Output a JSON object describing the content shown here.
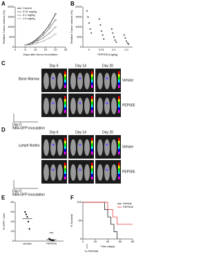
{
  "chart_data": [
    {
      "type": "line",
      "label": "A",
      "ylabel": "Relative Tumor volume (%)",
      "xlabel": "Days after tumor inoculation",
      "x": [
        5,
        8,
        11,
        14,
        17,
        20
      ],
      "xlim": [
        0,
        25
      ],
      "xticks": [
        0,
        5,
        10,
        15,
        20,
        25
      ],
      "ylim": [
        0,
        2000
      ],
      "yticks": [
        0,
        500,
        1000,
        1500,
        2000
      ],
      "legend": "upper-left",
      "series": [
        {
          "name": "Control",
          "color": "#000000",
          "values": [
            100,
            200,
            420,
            720,
            1100,
            1650
          ]
        },
        {
          "name": "0.01 mg/kg",
          "color": "#555555",
          "values": [
            100,
            180,
            360,
            600,
            950,
            1350
          ]
        },
        {
          "name": "0.1 mg/kg",
          "color": "#777777",
          "values": [
            100,
            150,
            290,
            460,
            700,
            1000
          ]
        },
        {
          "name": "1.0 mg/kg",
          "color": "#999999",
          "values": [
            100,
            120,
            200,
            300,
            450,
            650
          ]
        }
      ]
    },
    {
      "type": "scatter",
      "label": "B",
      "ylabel": "Relative Tumor volume (%)",
      "xlabel": "PEP005 (mg/kg)",
      "categories": [
        "0",
        "0.01",
        "0.1",
        "1.0"
      ],
      "ylim": [
        0,
        2000
      ],
      "yticks": [
        0,
        500,
        1000,
        1500,
        2000
      ],
      "color": "#555555",
      "values": [
        [
          1800,
          1500,
          1200,
          900,
          700
        ],
        [
          1400,
          1100,
          800,
          600,
          400
        ],
        [
          900,
          700,
          500,
          350,
          250
        ],
        [
          600,
          450,
          300,
          200,
          150
        ]
      ]
    },
    {
      "type": "scatter",
      "label": "E",
      "ylabel": "% GFP+ cells",
      "categories": [
        "vehicle",
        "PEP005"
      ],
      "ylim": [
        0,
        80
      ],
      "yticks": [
        0,
        20,
        40,
        60,
        80
      ],
      "color": "#000000",
      "values": [
        [
          60,
          55,
          50,
          40,
          25
        ],
        [
          5,
          3,
          2,
          2,
          1
        ]
      ],
      "means": [
        46,
        3
      ],
      "annotation": "***"
    },
    {
      "type": "step",
      "label": "F",
      "ylabel": "% Survival",
      "xlabel": "Time (days)",
      "annotation": "Tx PEP005",
      "xlim": [
        0,
        80
      ],
      "xticks": [
        0,
        20,
        40,
        60,
        80
      ],
      "ylim": [
        0,
        100
      ],
      "yticks": [
        0,
        50,
        100
      ],
      "legend": "upper-right",
      "series": [
        {
          "name": "Vehicle",
          "color": "#000000",
          "x": [
            0,
            35,
            40,
            45,
            50,
            55
          ],
          "values": [
            100,
            80,
            60,
            40,
            20,
            0
          ]
        },
        {
          "name": "PEP005",
          "color": "#dd2222",
          "x": [
            0,
            40,
            48,
            55,
            60,
            80
          ],
          "values": [
            100,
            80,
            60,
            40,
            40,
            40
          ]
        }
      ]
    }
  ],
  "panel_c": {
    "label": "C",
    "days": [
      "Day 6",
      "Day 14",
      "Day 20"
    ],
    "site": "Bone Marrow",
    "rows": [
      "Vehicle",
      "PEP005"
    ],
    "day0": "Day 0",
    "inoculation": "NB4-GFP inoculation"
  },
  "panel_d": {
    "label": "D",
    "days": [
      "Day 6",
      "Day 14",
      "Day 20"
    ],
    "site": "Lymph Nodes",
    "rows": [
      "Vehicle",
      "PEP005"
    ],
    "day0": "Day 0",
    "inoculation": "NB4-GFP inoculation"
  }
}
